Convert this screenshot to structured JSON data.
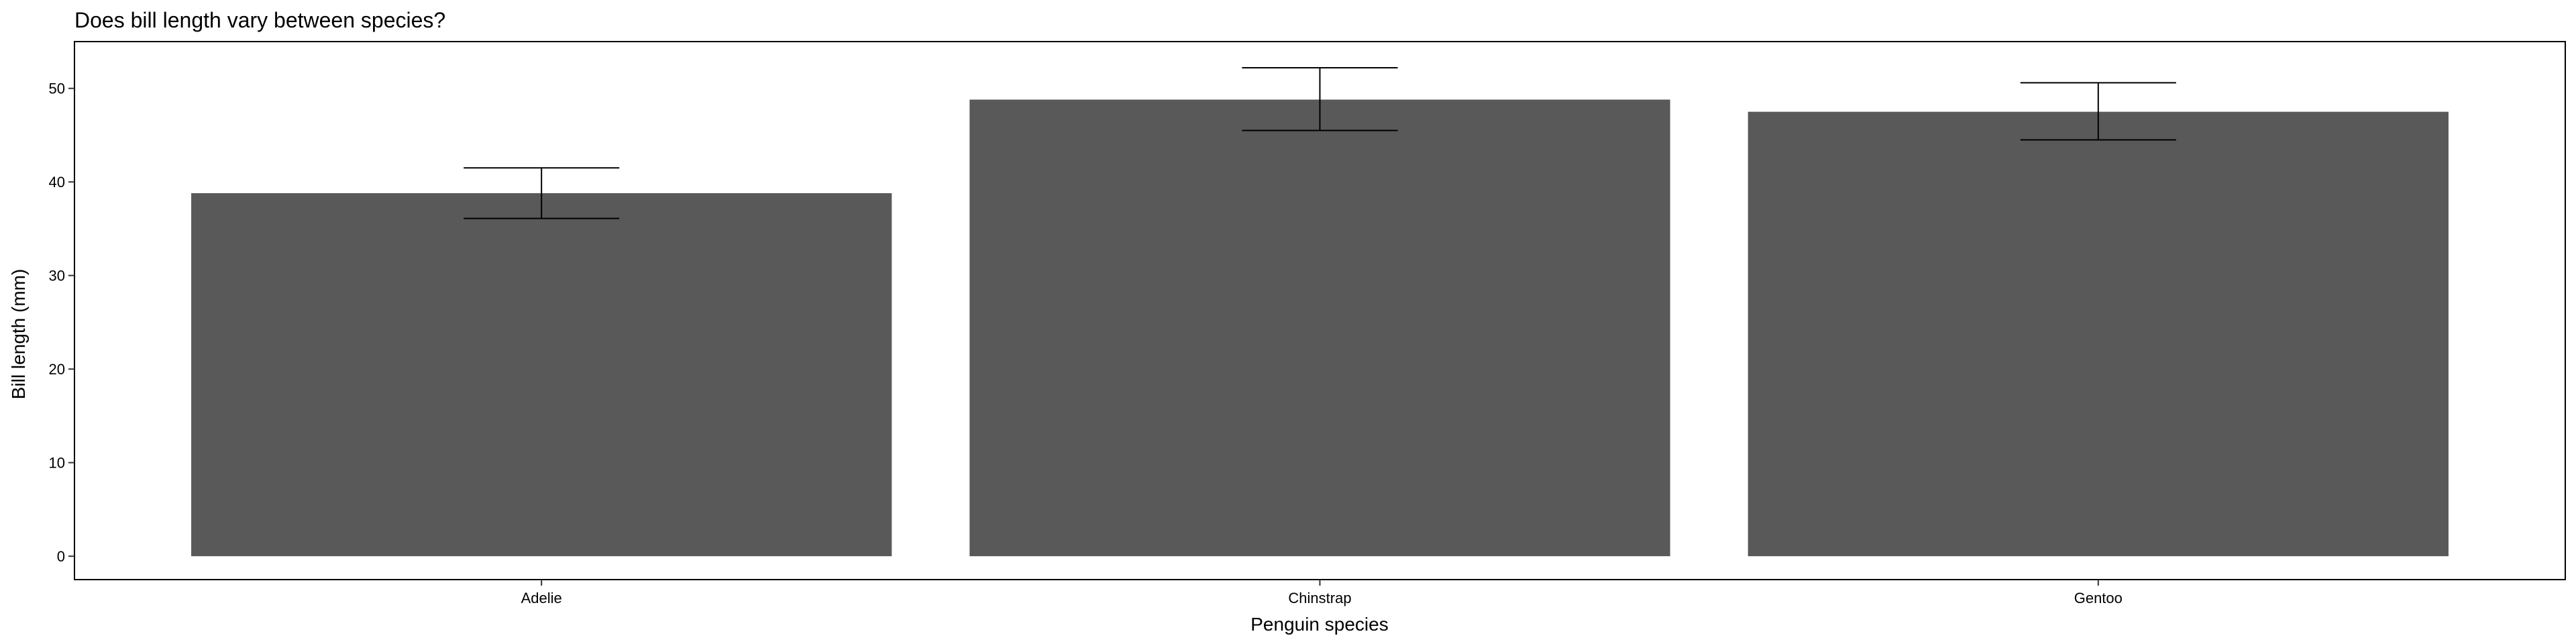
{
  "chart_data": {
    "type": "bar",
    "title": "Does bill length vary between species?",
    "xlabel": "Penguin species",
    "ylabel": "Bill length (mm)",
    "categories": [
      "Adelie",
      "Chinstrap",
      "Gentoo"
    ],
    "values": [
      38.8,
      48.8,
      47.5
    ],
    "error_bars": [
      {
        "low": 36.1,
        "high": 41.5
      },
      {
        "low": 45.5,
        "high": 52.2
      },
      {
        "low": 44.5,
        "high": 50.6
      }
    ],
    "ylim": [
      -2.5,
      55
    ],
    "yticks": [
      0,
      10,
      20,
      30,
      40,
      50
    ],
    "grid": false,
    "legend": "none",
    "bar_color": "#595959",
    "error_bar_color": "#000000",
    "panel_border_color": "#000000",
    "background_color": "#ffffff"
  }
}
